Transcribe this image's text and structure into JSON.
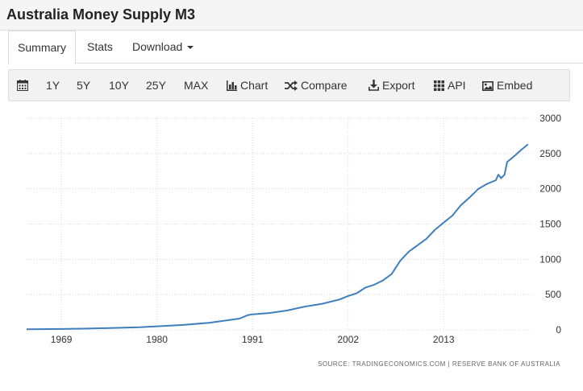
{
  "page": {
    "title": "Australia Money Supply M3"
  },
  "tabs": [
    {
      "label": "Summary",
      "active": true
    },
    {
      "label": "Stats",
      "active": false
    },
    {
      "label": "Download",
      "active": false
    }
  ],
  "toolbar": {
    "calendar_icon": "calendar-icon",
    "ranges": [
      "1Y",
      "5Y",
      "10Y",
      "25Y",
      "MAX"
    ],
    "chart_label": "Chart",
    "compare_label": "Compare",
    "export_label": "Export",
    "api_label": "API",
    "embed_label": "Embed"
  },
  "chart_data": {
    "type": "line",
    "title": "",
    "xlabel": "",
    "ylabel": "",
    "xlim": [
      1965,
      2023
    ],
    "ylim": [
      0,
      3000
    ],
    "grid": true,
    "line_color": "#3f7fbf",
    "x_ticks": [
      1969,
      1980,
      1991,
      2002,
      2013
    ],
    "x_tick_labels": [
      "1969",
      "1980",
      "1991",
      "2002",
      "2013"
    ],
    "y_ticks": [
      0,
      500,
      1000,
      1500,
      2000,
      2500,
      3000
    ],
    "y_tick_labels": [
      "0",
      "500",
      "1000",
      "1500",
      "2000",
      "2500",
      "3000"
    ],
    "source": "SOURCE: TRADINGECONOMICS.COM | RESERVE BANK OF AUSTRALIA",
    "series": [
      {
        "values": [
          [
            1965,
            8
          ],
          [
            1969,
            12
          ],
          [
            1972,
            18
          ],
          [
            1975,
            27
          ],
          [
            1978,
            38
          ],
          [
            1980,
            50
          ],
          [
            1983,
            70
          ],
          [
            1986,
            100
          ],
          [
            1988,
            135
          ],
          [
            1989.5,
            160
          ],
          [
            1990.5,
            210
          ],
          [
            1991,
            220
          ],
          [
            1993,
            240
          ],
          [
            1995,
            275
          ],
          [
            1997,
            330
          ],
          [
            1999,
            370
          ],
          [
            2001,
            430
          ],
          [
            2002,
            480
          ],
          [
            2003,
            520
          ],
          [
            2004,
            600
          ],
          [
            2005,
            640
          ],
          [
            2006,
            700
          ],
          [
            2007,
            790
          ],
          [
            2008,
            980
          ],
          [
            2009,
            1110
          ],
          [
            2010,
            1200
          ],
          [
            2011,
            1290
          ],
          [
            2012,
            1420
          ],
          [
            2013,
            1520
          ],
          [
            2014,
            1620
          ],
          [
            2015,
            1770
          ],
          [
            2016,
            1880
          ],
          [
            2017,
            2000
          ],
          [
            2018,
            2070
          ],
          [
            2019,
            2120
          ],
          [
            2019.3,
            2200
          ],
          [
            2019.6,
            2150
          ],
          [
            2020,
            2200
          ],
          [
            2020.3,
            2380
          ],
          [
            2021,
            2450
          ],
          [
            2022,
            2560
          ],
          [
            2022.7,
            2630
          ]
        ]
      }
    ]
  }
}
